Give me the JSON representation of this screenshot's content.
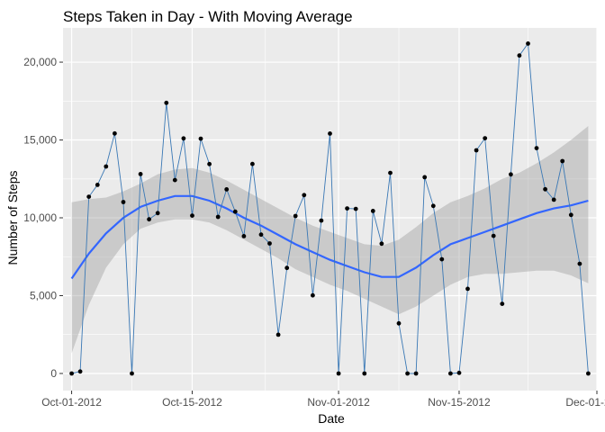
{
  "chart_data": {
    "type": "line",
    "title": "Steps Taken in Day - With Moving Average",
    "xlabel": "Date",
    "ylabel": "Number of Steps",
    "x_tick_labels": [
      {
        "date": "2012-10-01",
        "label": "Oct-01-2012"
      },
      {
        "date": "2012-10-15",
        "label": "Oct-15-2012"
      },
      {
        "date": "2012-11-01",
        "label": "Nov-01-2012"
      },
      {
        "date": "2012-11-15",
        "label": "Nov-15-2012"
      },
      {
        "date": "2012-12-01",
        "label": "Dec-01-2012"
      }
    ],
    "y_tick_labels": [
      {
        "value": 0,
        "label": "0"
      },
      {
        "value": 5000,
        "label": "5,000"
      },
      {
        "value": 10000,
        "label": "10,000"
      },
      {
        "value": 15000,
        "label": "15,000"
      },
      {
        "value": 20000,
        "label": "20,000"
      }
    ],
    "xlim": [
      "2012-09-30",
      "2012-12-01"
    ],
    "ylim": [
      -1100,
      22200
    ],
    "grid": true,
    "background": "#ebebeb",
    "grid_color": "#ffffff",
    "series": [
      {
        "type": "line+points",
        "line_color": "#3a78b5",
        "point_color": "#000000",
        "x": [
          "2012-10-01",
          "2012-10-02",
          "2012-10-03",
          "2012-10-04",
          "2012-10-05",
          "2012-10-06",
          "2012-10-07",
          "2012-10-08",
          "2012-10-09",
          "2012-10-10",
          "2012-10-11",
          "2012-10-12",
          "2012-10-13",
          "2012-10-14",
          "2012-10-15",
          "2012-10-16",
          "2012-10-17",
          "2012-10-18",
          "2012-10-19",
          "2012-10-20",
          "2012-10-21",
          "2012-10-22",
          "2012-10-23",
          "2012-10-24",
          "2012-10-25",
          "2012-10-26",
          "2012-10-27",
          "2012-10-28",
          "2012-10-29",
          "2012-10-30",
          "2012-10-31",
          "2012-11-01",
          "2012-11-02",
          "2012-11-03",
          "2012-11-04",
          "2012-11-05",
          "2012-11-06",
          "2012-11-07",
          "2012-11-08",
          "2012-11-09",
          "2012-11-10",
          "2012-11-11",
          "2012-11-12",
          "2012-11-13",
          "2012-11-14",
          "2012-11-15",
          "2012-11-16",
          "2012-11-17",
          "2012-11-18",
          "2012-11-19",
          "2012-11-20",
          "2012-11-21",
          "2012-11-22",
          "2012-11-23",
          "2012-11-24",
          "2012-11-25",
          "2012-11-26",
          "2012-11-27",
          "2012-11-28",
          "2012-11-29",
          "2012-11-30"
        ],
        "values": [
          0,
          126,
          11352,
          12116,
          13294,
          15420,
          11015,
          0,
          12811,
          9900,
          10304,
          17382,
          12426,
          15098,
          10139,
          15084,
          13452,
          10056,
          11829,
          10395,
          8821,
          13460,
          8918,
          8355,
          2492,
          6778,
          10119,
          11458,
          5018,
          9819,
          15414,
          0,
          10600,
          10571,
          0,
          10439,
          8334,
          12883,
          3219,
          0,
          0,
          12608,
          10765,
          7336,
          0,
          41,
          5441,
          14339,
          15110,
          8841,
          4472,
          12787,
          20427,
          21194,
          14478,
          11834,
          11162,
          13646,
          10183,
          7047,
          0
        ]
      },
      {
        "type": "smooth",
        "line_color": "#3366ff",
        "band_color": "#999999",
        "x": [
          "2012-10-01",
          "2012-10-03",
          "2012-10-05",
          "2012-10-07",
          "2012-10-09",
          "2012-10-11",
          "2012-10-13",
          "2012-10-15",
          "2012-10-17",
          "2012-10-19",
          "2012-10-21",
          "2012-10-23",
          "2012-10-25",
          "2012-10-27",
          "2012-10-29",
          "2012-10-31",
          "2012-11-02",
          "2012-11-04",
          "2012-11-06",
          "2012-11-08",
          "2012-11-10",
          "2012-11-12",
          "2012-11-14",
          "2012-11-16",
          "2012-11-18",
          "2012-11-20",
          "2012-11-22",
          "2012-11-24",
          "2012-11-26",
          "2012-11-28",
          "2012-11-30"
        ],
        "values": [
          6100,
          7700,
          9000,
          10000,
          10700,
          11100,
          11400,
          11400,
          11100,
          10600,
          10000,
          9500,
          8900,
          8300,
          7800,
          7300,
          6900,
          6500,
          6200,
          6200,
          6800,
          7600,
          8300,
          8700,
          9100,
          9500,
          9900,
          10300,
          10600,
          10800,
          11100
        ],
        "lower": [
          1300,
          4400,
          6800,
          8300,
          9300,
          9700,
          9900,
          9900,
          9700,
          9200,
          8600,
          8000,
          7400,
          6700,
          6200,
          5700,
          5300,
          4800,
          4300,
          3800,
          4300,
          5000,
          5700,
          6200,
          6400,
          6400,
          6500,
          6600,
          6600,
          6300,
          5800
        ],
        "upper": [
          11000,
          11200,
          11300,
          11700,
          12200,
          12800,
          13100,
          13200,
          12900,
          12400,
          11800,
          11200,
          10600,
          10000,
          9500,
          9100,
          8700,
          8300,
          8200,
          8600,
          9400,
          10300,
          11000,
          11400,
          11900,
          12500,
          12900,
          13500,
          14200,
          15000,
          15900
        ]
      }
    ]
  }
}
